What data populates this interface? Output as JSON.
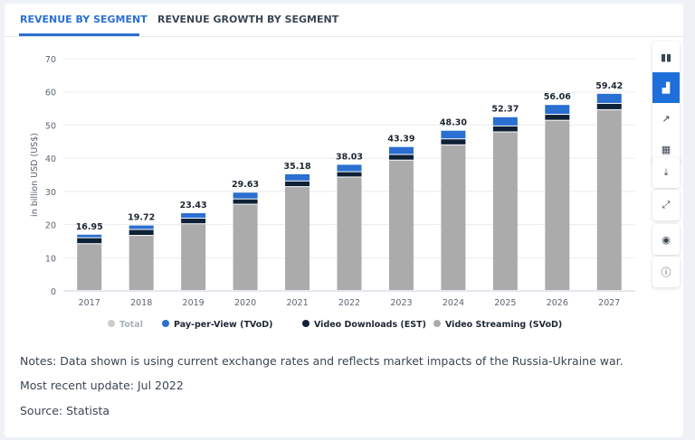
{
  "tabs": [
    {
      "label": "REVENUE BY SEGMENT",
      "active": true
    },
    {
      "label": "REVENUE GROWTH BY SEGMENT",
      "active": false
    }
  ],
  "sidebar": [
    "bar-chart-icon",
    "stacked-bar-icon",
    "line-chart-icon",
    "table-icon",
    "download-icon",
    "fullscreen-icon",
    "hide-icon",
    "info-icon"
  ],
  "notes": [
    "Notes: Data shown is using current exchange rates and reflects market impacts of the Russia-Ukraine war.",
    "Most recent update: Jul 2022",
    "Source: Statista"
  ],
  "chart_data": {
    "type": "bar",
    "stacked": true,
    "categories": [
      "2017",
      "2018",
      "2019",
      "2020",
      "2021",
      "2022",
      "2023",
      "2024",
      "2025",
      "2026",
      "2027"
    ],
    "totals": [
      "16.95",
      "19.72",
      "23.43",
      "29.63",
      "35.18",
      "38.03",
      "43.39",
      "48.30",
      "52.37",
      "56.06",
      "59.42"
    ],
    "series": [
      {
        "name": "Video Streaming (SVoD)",
        "color": "#ababab",
        "values": [
          14.1,
          16.6,
          20.1,
          26.0,
          31.3,
          34.2,
          39.3,
          43.9,
          47.8,
          51.3,
          54.5
        ]
      },
      {
        "name": "Video Downloads (EST)",
        "color": "#0f2136",
        "values": [
          1.8,
          1.8,
          1.7,
          1.6,
          1.7,
          1.6,
          1.7,
          1.8,
          1.8,
          1.8,
          1.9
        ]
      },
      {
        "name": "Pay-per-View (TVoD)",
        "color": "#2a6fd1",
        "values": [
          1.05,
          1.32,
          1.63,
          2.03,
          2.18,
          2.23,
          2.39,
          2.6,
          2.77,
          2.96,
          3.02
        ]
      }
    ],
    "legend": [
      {
        "name": "Total",
        "color": "#cccccc"
      },
      {
        "name": "Pay-per-View (TVoD)",
        "color": "#2a6fd1"
      },
      {
        "name": "Video Downloads (EST)",
        "color": "#0f2136"
      },
      {
        "name": "Video Streaming (SVoD)",
        "color": "#ababab"
      }
    ],
    "ylabel": "in billion USD (US$)",
    "ylim": [
      0,
      70
    ],
    "yticks": [
      "0",
      "10",
      "20",
      "30",
      "40",
      "50",
      "60",
      "70"
    ],
    "grid": true,
    "legend_position": "bottom"
  }
}
